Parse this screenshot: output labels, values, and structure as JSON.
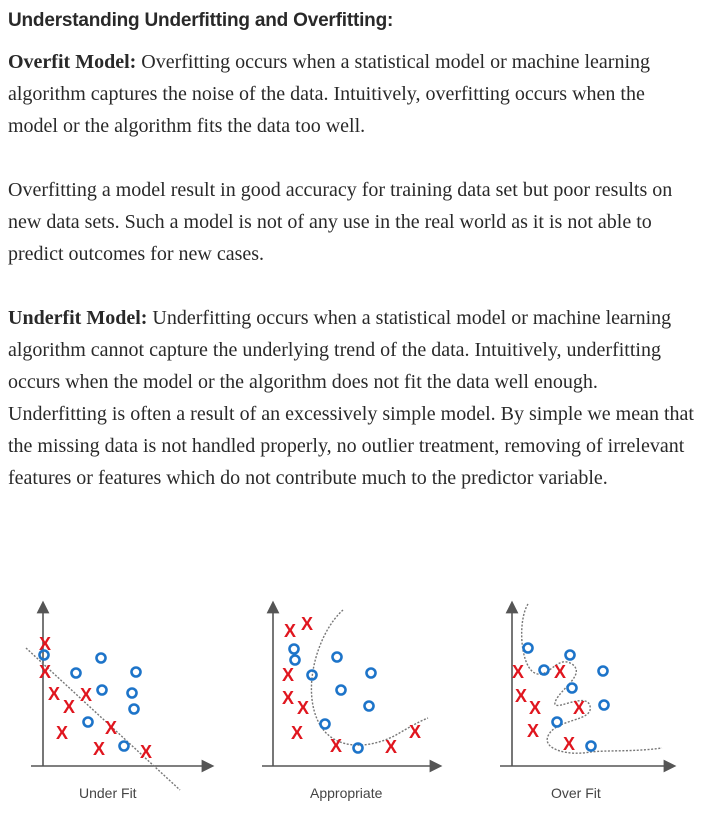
{
  "heading": "Understanding Underfitting and Overfitting:",
  "overfit": {
    "term": "Overfit Model:",
    "text": " Overfitting occurs when a statistical model or machine learning algorithm captures the noise of the data. Intuitively, overfitting occurs when the model or the algorithm fits the data too well."
  },
  "overfit_result": "Overfitting a model result in good accuracy for training data set but poor results on new data sets. Such a model is not of any use in the real world as it is not able to predict outcomes for new cases.",
  "underfit": {
    "term": "Underfit Model:",
    "text": " Underfitting occurs when a statistical model or machine learning algorithm cannot capture the underlying trend of the data. Intuitively, underfitting occurs when the model or the algorithm does not fit the data well enough. Underfitting is often a result of an excessively simple model. By simple we mean that the missing data is not handled properly, no outlier treatment, removing of irrelevant features or features which do not contribute much to the predictor variable."
  },
  "figure": {
    "marker_x": "X",
    "colors": {
      "x_marker": "#e0161f",
      "o_marker": "#1d74c9",
      "axis": "#555555"
    },
    "panels": [
      {
        "caption": "Under Fit"
      },
      {
        "caption": "Appropriate"
      },
      {
        "caption": "Over Fit"
      }
    ]
  }
}
